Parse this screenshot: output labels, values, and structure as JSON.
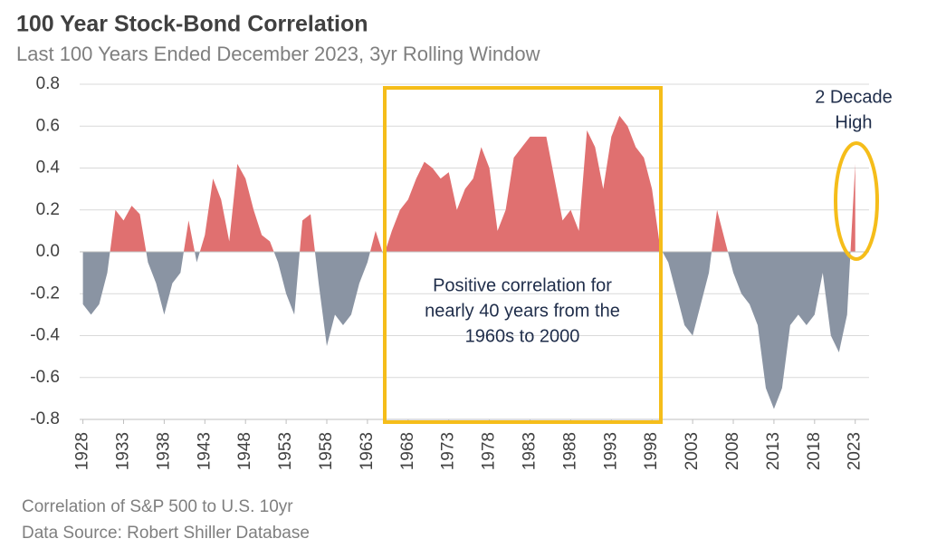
{
  "chart_data": {
    "type": "area",
    "title": "100 Year Stock-Bond Correlation",
    "subtitle": "Last 100 Years Ended December 2023, 3yr Rolling Window",
    "footnotes": [
      "Correlation of S&P 500 to U.S. 10yr",
      "Data Source: Robert Shiller Database"
    ],
    "x": [
      1928,
      1929,
      1930,
      1931,
      1932,
      1933,
      1934,
      1935,
      1936,
      1937,
      1938,
      1939,
      1940,
      1941,
      1942,
      1943,
      1944,
      1945,
      1946,
      1947,
      1948,
      1949,
      1950,
      1951,
      1952,
      1953,
      1954,
      1955,
      1956,
      1957,
      1958,
      1959,
      1960,
      1961,
      1962,
      1963,
      1964,
      1965,
      1966,
      1967,
      1968,
      1969,
      1970,
      1971,
      1972,
      1973,
      1974,
      1975,
      1976,
      1977,
      1978,
      1979,
      1980,
      1981,
      1982,
      1983,
      1984,
      1985,
      1986,
      1987,
      1988,
      1989,
      1990,
      1991,
      1992,
      1993,
      1994,
      1995,
      1996,
      1997,
      1998,
      1999,
      2000,
      2001,
      2002,
      2003,
      2004,
      2005,
      2006,
      2007,
      2008,
      2009,
      2010,
      2011,
      2012,
      2013,
      2014,
      2015,
      2016,
      2017,
      2018,
      2019,
      2020,
      2021,
      2022,
      2023
    ],
    "values": [
      -0.25,
      -0.3,
      -0.25,
      -0.1,
      0.2,
      0.15,
      0.22,
      0.18,
      -0.05,
      -0.15,
      -0.3,
      -0.15,
      -0.1,
      0.15,
      -0.05,
      0.08,
      0.35,
      0.25,
      0.05,
      0.42,
      0.35,
      0.2,
      0.08,
      0.05,
      -0.05,
      -0.2,
      -0.3,
      0.15,
      0.18,
      -0.15,
      -0.45,
      -0.3,
      -0.35,
      -0.3,
      -0.15,
      -0.05,
      0.1,
      -0.02,
      0.1,
      0.2,
      0.25,
      0.35,
      0.43,
      0.4,
      0.35,
      0.38,
      0.2,
      0.3,
      0.35,
      0.5,
      0.4,
      0.1,
      0.2,
      0.45,
      0.5,
      0.55,
      0.55,
      0.55,
      0.35,
      0.15,
      0.2,
      0.1,
      0.58,
      0.5,
      0.3,
      0.55,
      0.65,
      0.6,
      0.5,
      0.45,
      0.3,
      0.02,
      -0.05,
      -0.2,
      -0.35,
      -0.4,
      -0.25,
      -0.1,
      0.2,
      0.05,
      -0.1,
      -0.2,
      -0.25,
      -0.35,
      -0.65,
      -0.75,
      -0.65,
      -0.35,
      -0.3,
      -0.35,
      -0.3,
      -0.1,
      -0.4,
      -0.48,
      -0.3,
      0.42
    ],
    "positive_color": "#e07070",
    "negative_color": "#8a94a3",
    "xlim": [
      1927.6,
      2024.7
    ],
    "xticks": [
      1928,
      1933,
      1938,
      1943,
      1948,
      1953,
      1958,
      1963,
      1968,
      1973,
      1978,
      1983,
      1988,
      1993,
      1998,
      2003,
      2008,
      2013,
      2018,
      2023
    ],
    "ylim": [
      -0.8,
      0.8
    ],
    "yticks": [
      -0.8,
      -0.6,
      -0.4,
      -0.2,
      {
        "value": 0,
        "label": "0.0"
      },
      0.2,
      0.4,
      0.6,
      0.8
    ],
    "grid": true,
    "annotations": [
      {
        "text": [
          "Positive correlation for",
          "nearly 40 years from the",
          "1960s to 2000"
        ]
      },
      {
        "text": [
          "2 Decade",
          "High"
        ]
      }
    ]
  }
}
